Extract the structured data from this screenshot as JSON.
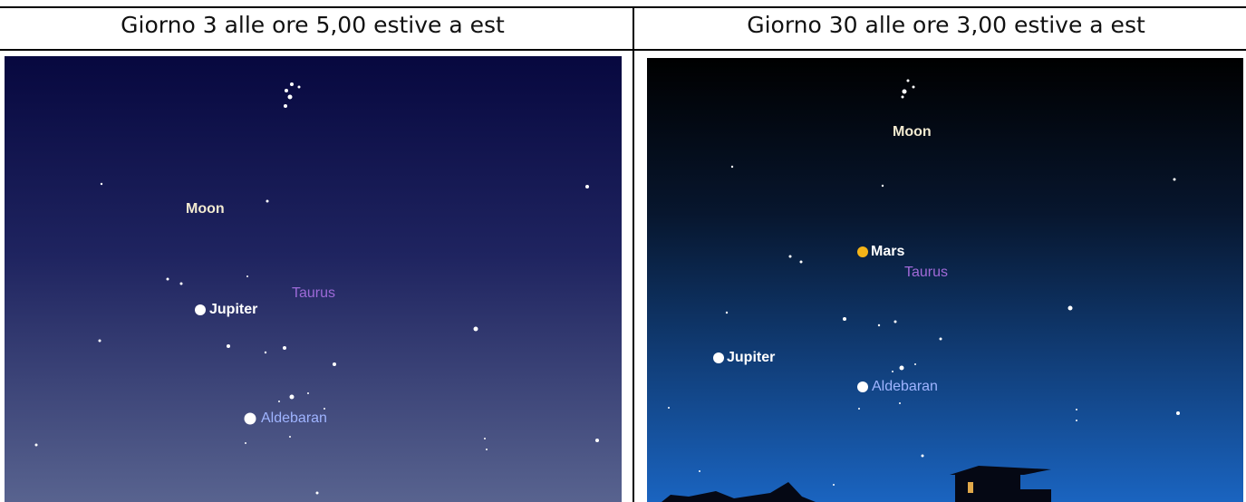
{
  "table": {
    "headers": [
      "Giorno 3 alle ore 5,00 estive a est",
      "Giorno 30 alle ore 3,00 estive a est"
    ]
  },
  "panels": [
    {
      "labels": [
        "Moon",
        "Jupiter",
        "Taurus",
        "Aldebaran"
      ]
    },
    {
      "labels": [
        "Moon",
        "Mars",
        "Taurus",
        "Jupiter",
        "Aldebaran"
      ]
    }
  ]
}
